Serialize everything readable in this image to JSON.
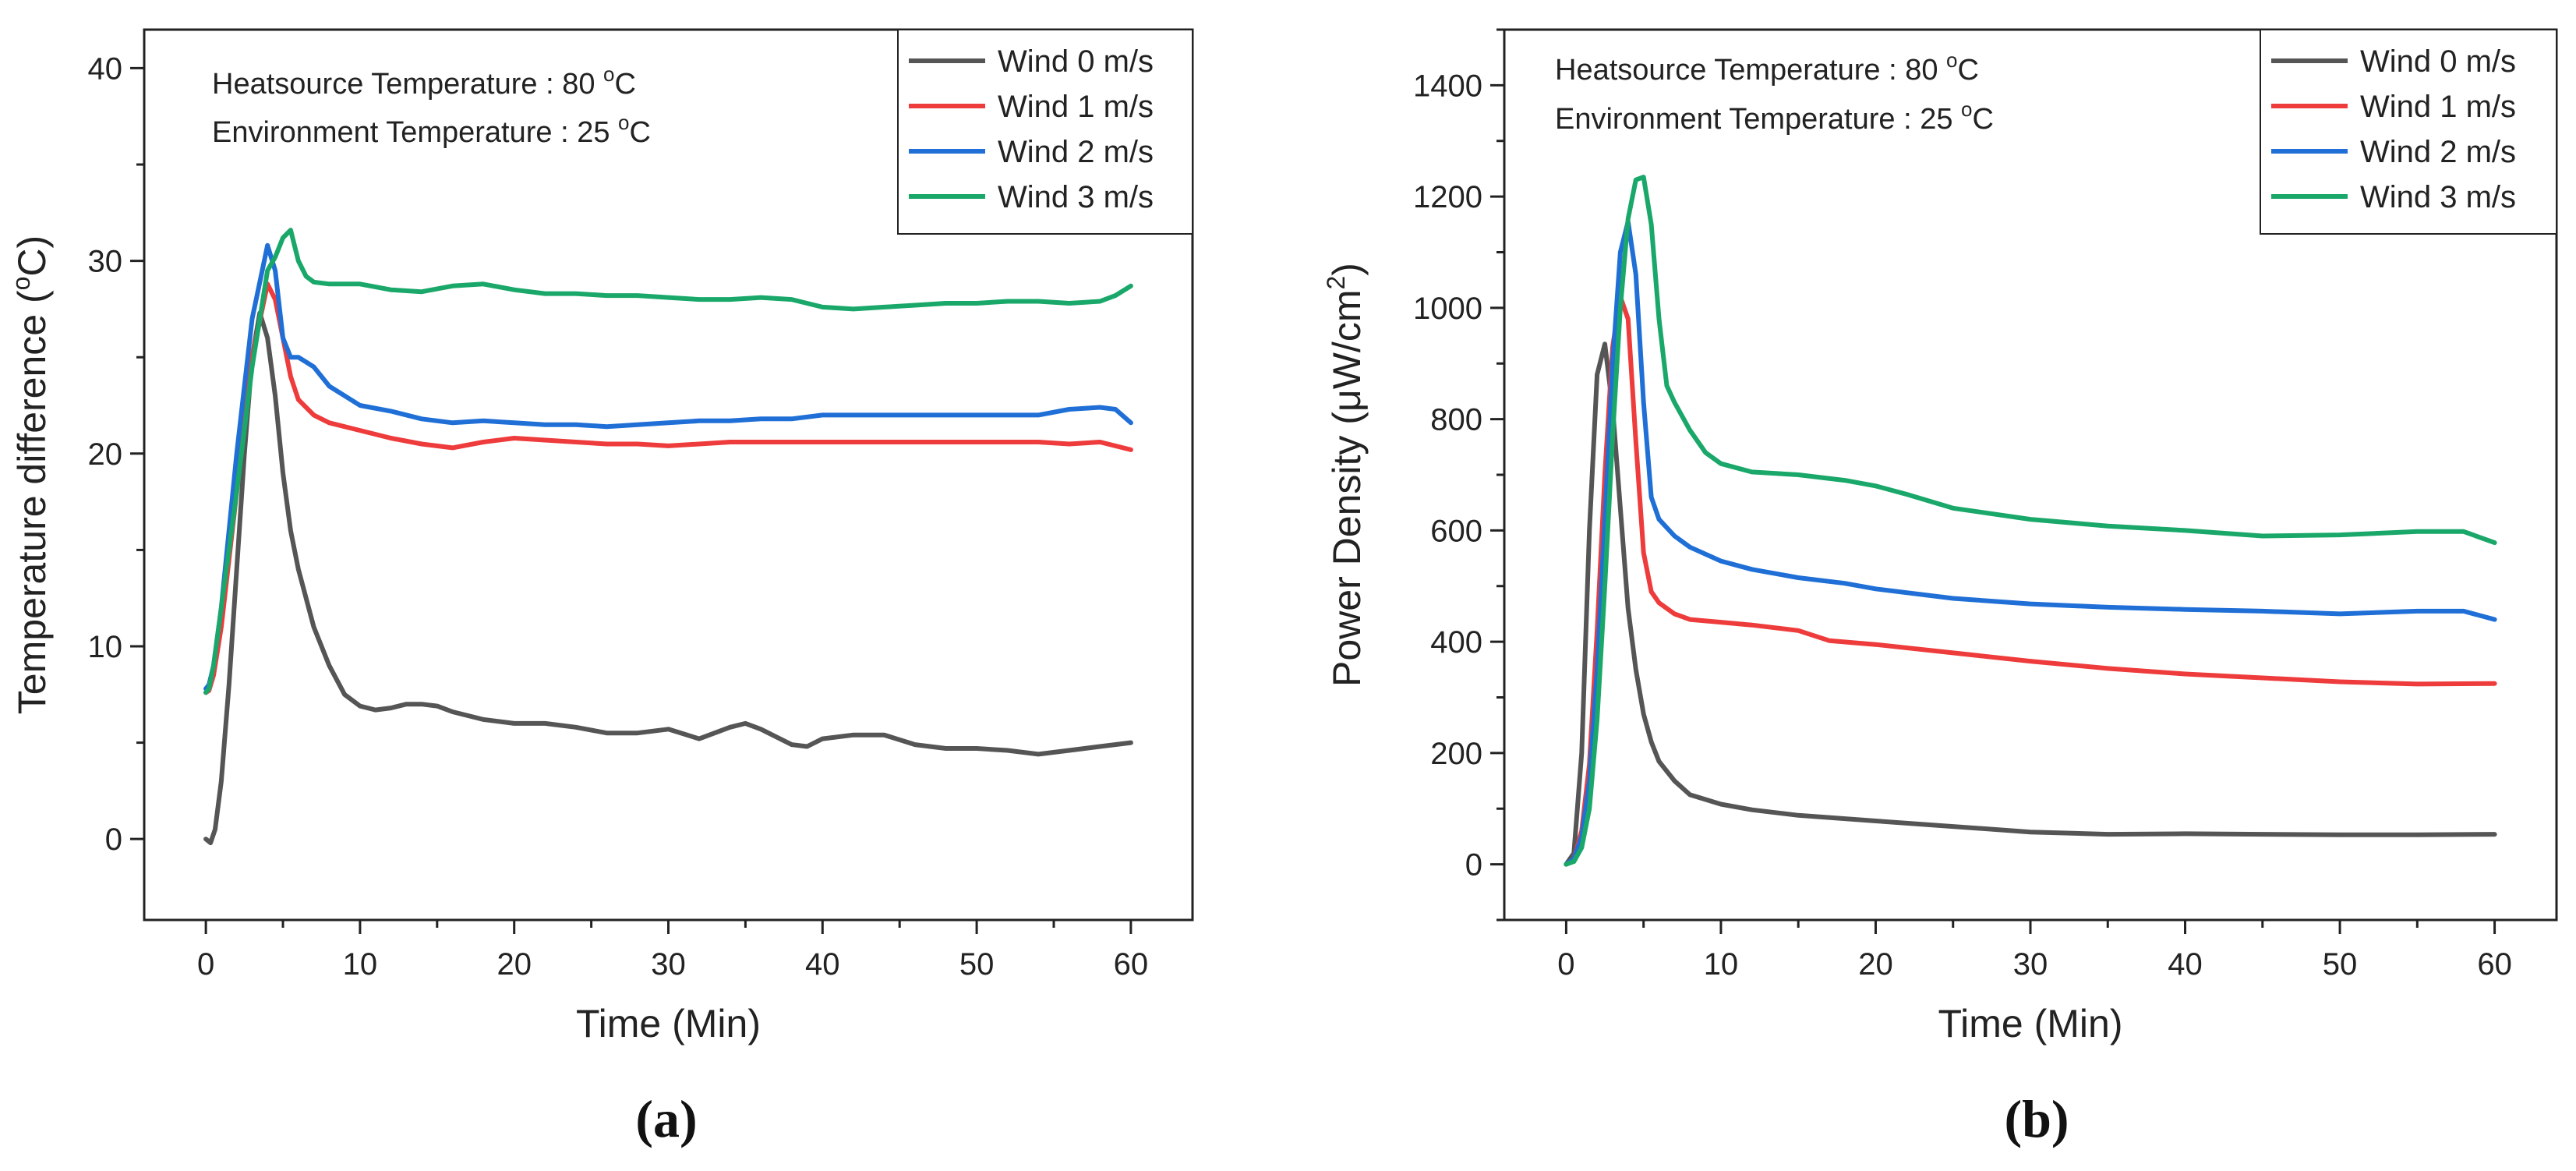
{
  "figure": {
    "panels": [
      {
        "label": "(a)"
      },
      {
        "label": "(b)"
      }
    ]
  },
  "chart_data": [
    {
      "type": "line",
      "panel": "(a)",
      "title": "",
      "xlabel": "Time (Min)",
      "ylabel_prefix": "Temperature difference (",
      "ylabel_sup": "o",
      "ylabel_suffix": "C)",
      "xlim": [
        -4,
        64
      ],
      "ylim": [
        -4.2,
        42
      ],
      "xticks": [
        0,
        10,
        20,
        30,
        40,
        50,
        60
      ],
      "yticks": [
        0,
        10,
        20,
        30,
        40
      ],
      "grid": false,
      "legend_position": "top-right",
      "annotations": [
        {
          "pre": "Heatsource Temperature : 80 ",
          "sup": "o",
          "post": "C"
        },
        {
          "pre": "Environment Temperature : 25 ",
          "sup": "o",
          "post": "C"
        }
      ],
      "series": [
        {
          "name": "Wind 0 m/s",
          "color": "#555555",
          "x": [
            0,
            0.3,
            0.6,
            1,
            1.5,
            2,
            2.5,
            3,
            3.5,
            4,
            4.5,
            5,
            5.5,
            6,
            7,
            8,
            9,
            10,
            11,
            12,
            13,
            14,
            15,
            16,
            18,
            20,
            22,
            24,
            26,
            28,
            30,
            32,
            34,
            35,
            36,
            38,
            39,
            40,
            42,
            44,
            46,
            48,
            50,
            52,
            54,
            56,
            58,
            60
          ],
          "y": [
            0,
            -0.2,
            0.5,
            3,
            8,
            14,
            20,
            25,
            27.3,
            26,
            23,
            19,
            16,
            14,
            11,
            9,
            7.5,
            6.9,
            6.7,
            6.8,
            7,
            7,
            6.9,
            6.6,
            6.2,
            6,
            6,
            5.8,
            5.5,
            5.5,
            5.7,
            5.2,
            5.8,
            6,
            5.7,
            4.9,
            4.8,
            5.2,
            5.4,
            5.4,
            4.9,
            4.7,
            4.7,
            4.6,
            4.4,
            4.6,
            4.8,
            5
          ]
        },
        {
          "name": "Wind 1 m/s",
          "color": "#ee3b3b",
          "x": [
            0,
            0.2,
            0.5,
            1,
            2,
            3,
            4,
            4.5,
            5,
            5.5,
            6,
            7,
            8,
            10,
            12,
            14,
            16,
            18,
            20,
            22,
            24,
            26,
            28,
            30,
            32,
            34,
            36,
            38,
            40,
            42,
            44,
            46,
            48,
            50,
            52,
            54,
            56,
            58,
            60
          ],
          "y": [
            7.6,
            7.7,
            8.5,
            11,
            18,
            25,
            28.8,
            28,
            26,
            24,
            22.8,
            22,
            21.6,
            21.2,
            20.8,
            20.5,
            20.3,
            20.6,
            20.8,
            20.7,
            20.6,
            20.5,
            20.5,
            20.4,
            20.5,
            20.6,
            20.6,
            20.6,
            20.6,
            20.6,
            20.6,
            20.6,
            20.6,
            20.6,
            20.6,
            20.6,
            20.5,
            20.6,
            20.2
          ]
        },
        {
          "name": "Wind 2 m/s",
          "color": "#1f6fd6",
          "x": [
            0,
            0.2,
            0.5,
            1,
            2,
            3,
            4,
            4.5,
            5,
            5.5,
            6,
            7,
            8,
            10,
            12,
            14,
            16,
            18,
            20,
            22,
            24,
            26,
            28,
            30,
            32,
            34,
            36,
            38,
            40,
            42,
            44,
            46,
            48,
            50,
            52,
            54,
            56,
            58,
            59,
            60
          ],
          "y": [
            7.8,
            8,
            9,
            12,
            20,
            27,
            30.8,
            29.5,
            26,
            25,
            25,
            24.5,
            23.5,
            22.5,
            22.2,
            21.8,
            21.6,
            21.7,
            21.6,
            21.5,
            21.5,
            21.4,
            21.5,
            21.6,
            21.7,
            21.7,
            21.8,
            21.8,
            22,
            22,
            22,
            22,
            22,
            22,
            22,
            22,
            22.3,
            22.4,
            22.3,
            21.6
          ]
        },
        {
          "name": "Wind 3 m/s",
          "color": "#1aa86a",
          "x": [
            0,
            0.2,
            0.5,
            1,
            2,
            3,
            4,
            4.5,
            5,
            5.5,
            6,
            6.5,
            7,
            8,
            10,
            12,
            14,
            16,
            18,
            20,
            22,
            24,
            26,
            28,
            30,
            32,
            34,
            36,
            38,
            40,
            42,
            44,
            46,
            48,
            50,
            52,
            54,
            56,
            58,
            59,
            60
          ],
          "y": [
            7.6,
            7.8,
            9,
            12,
            18,
            24.5,
            29.5,
            30.2,
            31.2,
            31.6,
            30,
            29.2,
            28.9,
            28.8,
            28.8,
            28.5,
            28.4,
            28.7,
            28.8,
            28.5,
            28.3,
            28.3,
            28.2,
            28.2,
            28.1,
            28,
            28,
            28.1,
            28,
            27.6,
            27.5,
            27.6,
            27.7,
            27.8,
            27.8,
            27.9,
            27.9,
            27.8,
            27.9,
            28.2,
            28.7
          ]
        }
      ]
    },
    {
      "type": "line",
      "panel": "(b)",
      "title": "",
      "xlabel": "Time (Min)",
      "ylabel_prefix": "Power Density (μW/cm",
      "ylabel_sup": "2",
      "ylabel_suffix": ")",
      "xlim": [
        -4,
        64
      ],
      "ylim": [
        -100,
        1500
      ],
      "xticks": [
        0,
        10,
        20,
        30,
        40,
        50,
        60
      ],
      "yticks": [
        0,
        200,
        400,
        600,
        800,
        1000,
        1200,
        1400
      ],
      "grid": false,
      "legend_position": "top-right",
      "annotations": [
        {
          "pre": "Heatsource Temperature : 80 ",
          "sup": "o",
          "post": "C"
        },
        {
          "pre": "Environment Temperature : 25 ",
          "sup": "o",
          "post": "C"
        }
      ],
      "series": [
        {
          "name": "Wind 0 m/s",
          "color": "#555555",
          "x": [
            0,
            0.5,
            1,
            1.5,
            2,
            2.5,
            3,
            3.5,
            4,
            4.5,
            5,
            5.5,
            6,
            7,
            8,
            10,
            12,
            15,
            20,
            25,
            30,
            35,
            40,
            45,
            50,
            55,
            60
          ],
          "y": [
            0,
            20,
            200,
            600,
            880,
            935,
            820,
            640,
            460,
            350,
            270,
            220,
            185,
            150,
            125,
            108,
            98,
            88,
            78,
            68,
            58,
            54,
            55,
            54,
            53,
            53,
            54
          ]
        },
        {
          "name": "Wind 1 m/s",
          "color": "#ee3b3b",
          "x": [
            0,
            0.5,
            1,
            1.5,
            2,
            2.5,
            3,
            3.5,
            4,
            4.5,
            5,
            5.5,
            6,
            7,
            8,
            10,
            12,
            15,
            17,
            20,
            25,
            30,
            35,
            40,
            45,
            50,
            55,
            60
          ],
          "y": [
            0,
            10,
            60,
            180,
            420,
            700,
            930,
            1020,
            980,
            760,
            560,
            490,
            470,
            450,
            440,
            435,
            430,
            420,
            402,
            395,
            380,
            365,
            352,
            342,
            335,
            328,
            324,
            325
          ]
        },
        {
          "name": "Wind 2 m/s",
          "color": "#1f6fd6",
          "x": [
            0,
            0.5,
            1,
            1.5,
            2,
            2.5,
            3,
            3.5,
            4,
            4.5,
            5,
            5.5,
            6,
            7,
            8,
            10,
            12,
            15,
            18,
            20,
            25,
            30,
            35,
            40,
            45,
            50,
            55,
            58,
            60
          ],
          "y": [
            0,
            10,
            50,
            150,
            350,
            620,
            900,
            1100,
            1155,
            1060,
            830,
            660,
            620,
            590,
            570,
            545,
            530,
            515,
            505,
            495,
            478,
            468,
            462,
            458,
            455,
            450,
            455,
            455,
            440
          ]
        },
        {
          "name": "Wind 3 m/s",
          "color": "#1aa86a",
          "x": [
            0,
            0.5,
            1,
            1.5,
            2,
            2.5,
            3,
            3.5,
            4,
            4.5,
            5,
            5.5,
            6,
            6.5,
            7,
            8,
            9,
            10,
            12,
            15,
            18,
            20,
            22,
            25,
            30,
            35,
            40,
            45,
            50,
            55,
            58,
            60
          ],
          "y": [
            0,
            5,
            30,
            100,
            260,
            500,
            770,
            1000,
            1160,
            1230,
            1235,
            1150,
            980,
            860,
            830,
            780,
            740,
            720,
            705,
            700,
            690,
            680,
            665,
            640,
            620,
            608,
            600,
            590,
            592,
            598,
            598,
            578
          ]
        }
      ]
    }
  ]
}
